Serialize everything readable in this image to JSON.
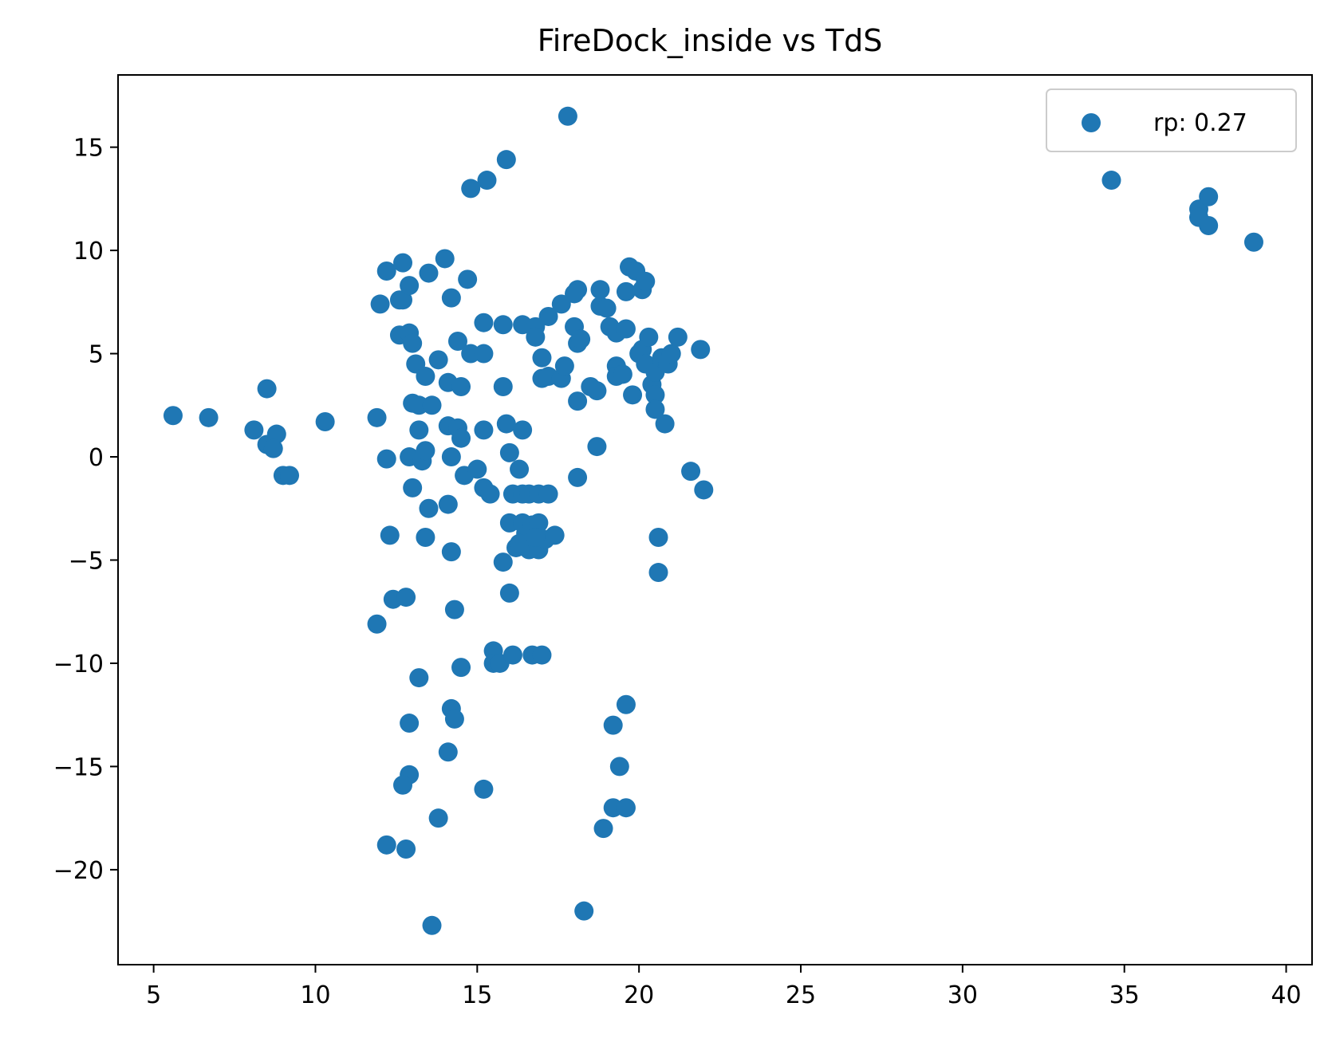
{
  "chart_data": {
    "type": "scatter",
    "title": "FireDock_inside vs TdS",
    "xlabel": "",
    "ylabel": "",
    "xlim": [
      3.9,
      40.8
    ],
    "ylim": [
      -24.6,
      18.5
    ],
    "xticks": [
      5,
      10,
      15,
      20,
      25,
      30,
      35,
      40
    ],
    "yticks": [
      -20,
      -15,
      -10,
      -5,
      0,
      5,
      10,
      15
    ],
    "grid": false,
    "legend_position": "top-right",
    "series": [
      {
        "name": "rp: 0.27",
        "color": "#1f77b4",
        "points": [
          [
            5.6,
            2.0
          ],
          [
            6.7,
            1.9
          ],
          [
            8.1,
            1.3
          ],
          [
            8.5,
            3.3
          ],
          [
            8.5,
            0.6
          ],
          [
            8.8,
            1.1
          ],
          [
            8.7,
            0.4
          ],
          [
            9.0,
            -0.9
          ],
          [
            9.2,
            -0.9
          ],
          [
            10.3,
            1.7
          ],
          [
            11.9,
            1.9
          ],
          [
            12.0,
            7.4
          ],
          [
            12.2,
            9.0
          ],
          [
            12.2,
            -0.1
          ],
          [
            12.3,
            -3.8
          ],
          [
            12.4,
            -6.9
          ],
          [
            12.6,
            5.9
          ],
          [
            12.6,
            7.6
          ],
          [
            12.7,
            7.6
          ],
          [
            12.7,
            9.4
          ],
          [
            12.9,
            6.0
          ],
          [
            12.9,
            8.3
          ],
          [
            12.9,
            0.0
          ],
          [
            13.0,
            5.5
          ],
          [
            13.0,
            2.6
          ],
          [
            13.0,
            -1.5
          ],
          [
            13.1,
            4.5
          ],
          [
            13.2,
            2.5
          ],
          [
            13.2,
            1.3
          ],
          [
            13.3,
            -0.2
          ],
          [
            13.4,
            3.9
          ],
          [
            13.4,
            0.3
          ],
          [
            13.5,
            8.9
          ],
          [
            13.5,
            -2.5
          ],
          [
            13.6,
            2.5
          ],
          [
            13.8,
            4.7
          ],
          [
            14.0,
            9.6
          ],
          [
            14.1,
            3.6
          ],
          [
            14.1,
            1.5
          ],
          [
            14.1,
            -2.3
          ],
          [
            14.2,
            7.7
          ],
          [
            14.2,
            0.0
          ],
          [
            14.4,
            1.4
          ],
          [
            14.4,
            5.6
          ],
          [
            14.5,
            3.4
          ],
          [
            14.5,
            0.9
          ],
          [
            14.6,
            -0.9
          ],
          [
            14.7,
            8.6
          ],
          [
            14.8,
            5.0
          ],
          [
            15.0,
            -0.6
          ],
          [
            15.2,
            6.5
          ],
          [
            15.2,
            5.0
          ],
          [
            15.2,
            1.3
          ],
          [
            15.2,
            -1.5
          ],
          [
            15.4,
            -1.8
          ],
          [
            14.8,
            13.0
          ],
          [
            15.3,
            13.4
          ],
          [
            15.9,
            14.4
          ],
          [
            15.8,
            6.4
          ],
          [
            15.8,
            3.4
          ],
          [
            15.9,
            1.6
          ],
          [
            16.0,
            0.2
          ],
          [
            16.3,
            -0.6
          ],
          [
            16.1,
            -1.8
          ],
          [
            16.4,
            -1.8
          ],
          [
            16.6,
            -1.8
          ],
          [
            16.9,
            -1.8
          ],
          [
            17.2,
            -1.8
          ],
          [
            16.0,
            -3.2
          ],
          [
            16.4,
            1.3
          ],
          [
            16.4,
            6.4
          ],
          [
            16.8,
            6.3
          ],
          [
            16.8,
            5.8
          ],
          [
            17.2,
            6.8
          ],
          [
            17.0,
            4.8
          ],
          [
            17.0,
            3.8
          ],
          [
            17.2,
            3.9
          ],
          [
            16.4,
            -3.2
          ],
          [
            16.5,
            -3.7
          ],
          [
            16.7,
            -3.3
          ],
          [
            16.9,
            -3.2
          ],
          [
            16.2,
            -4.4
          ],
          [
            16.6,
            -4.5
          ],
          [
            16.9,
            -4.5
          ],
          [
            17.1,
            -4.0
          ],
          [
            17.4,
            -3.8
          ],
          [
            16.3,
            -4.2
          ],
          [
            16.8,
            -3.9
          ],
          [
            17.6,
            7.4
          ],
          [
            17.6,
            3.8
          ],
          [
            17.7,
            4.4
          ],
          [
            18.1,
            8.1
          ],
          [
            18.0,
            7.9
          ],
          [
            18.0,
            6.3
          ],
          [
            18.1,
            5.5
          ],
          [
            18.2,
            5.7
          ],
          [
            18.1,
            2.7
          ],
          [
            18.5,
            3.4
          ],
          [
            18.7,
            3.2
          ],
          [
            18.7,
            0.5
          ],
          [
            18.1,
            -1.0
          ],
          [
            18.8,
            8.1
          ],
          [
            18.8,
            7.3
          ],
          [
            19.0,
            7.2
          ],
          [
            19.1,
            6.3
          ],
          [
            19.3,
            6.0
          ],
          [
            19.6,
            6.2
          ],
          [
            19.3,
            4.4
          ],
          [
            19.3,
            3.9
          ],
          [
            19.5,
            4.0
          ],
          [
            19.7,
            9.2
          ],
          [
            19.9,
            9.0
          ],
          [
            19.6,
            8.0
          ],
          [
            20.1,
            8.1
          ],
          [
            20.2,
            8.5
          ],
          [
            19.8,
            3.0
          ],
          [
            20.0,
            5.0
          ],
          [
            20.1,
            5.2
          ],
          [
            20.2,
            4.5
          ],
          [
            20.3,
            5.8
          ],
          [
            20.4,
            3.5
          ],
          [
            20.5,
            4.1
          ],
          [
            20.5,
            3.0
          ],
          [
            20.5,
            2.3
          ],
          [
            20.7,
            4.8
          ],
          [
            20.9,
            4.5
          ],
          [
            21.0,
            5.0
          ],
          [
            21.2,
            5.8
          ],
          [
            20.8,
            1.6
          ],
          [
            21.6,
            -0.7
          ],
          [
            21.9,
            5.2
          ],
          [
            22.0,
            -1.6
          ],
          [
            20.6,
            -3.9
          ],
          [
            20.6,
            -5.6
          ],
          [
            15.8,
            -5.1
          ],
          [
            16.0,
            -6.6
          ],
          [
            14.2,
            -4.6
          ],
          [
            13.4,
            -3.9
          ],
          [
            12.8,
            -6.8
          ],
          [
            11.9,
            -8.1
          ],
          [
            14.3,
            -7.4
          ],
          [
            14.5,
            -10.2
          ],
          [
            13.2,
            -10.7
          ],
          [
            12.9,
            -12.9
          ],
          [
            14.2,
            -12.2
          ],
          [
            14.3,
            -12.7
          ],
          [
            14.1,
            -14.3
          ],
          [
            12.9,
            -15.4
          ],
          [
            12.7,
            -15.9
          ],
          [
            15.2,
            -16.1
          ],
          [
            13.8,
            -17.5
          ],
          [
            12.2,
            -18.8
          ],
          [
            12.8,
            -19.0
          ],
          [
            13.6,
            -22.7
          ],
          [
            15.5,
            -9.4
          ],
          [
            15.5,
            -10.0
          ],
          [
            15.7,
            -10.0
          ],
          [
            16.1,
            -9.6
          ],
          [
            16.7,
            -9.6
          ],
          [
            17.0,
            -9.6
          ],
          [
            19.6,
            -12.0
          ],
          [
            19.2,
            -13.0
          ],
          [
            19.4,
            -15.0
          ],
          [
            19.2,
            -17.0
          ],
          [
            19.6,
            -17.0
          ],
          [
            18.9,
            -18.0
          ],
          [
            18.3,
            -22.0
          ],
          [
            17.8,
            16.5
          ],
          [
            34.6,
            13.4
          ],
          [
            37.3,
            12.0
          ],
          [
            37.3,
            11.6
          ],
          [
            37.6,
            12.6
          ],
          [
            37.6,
            11.2
          ],
          [
            39.0,
            10.4
          ]
        ]
      }
    ]
  }
}
